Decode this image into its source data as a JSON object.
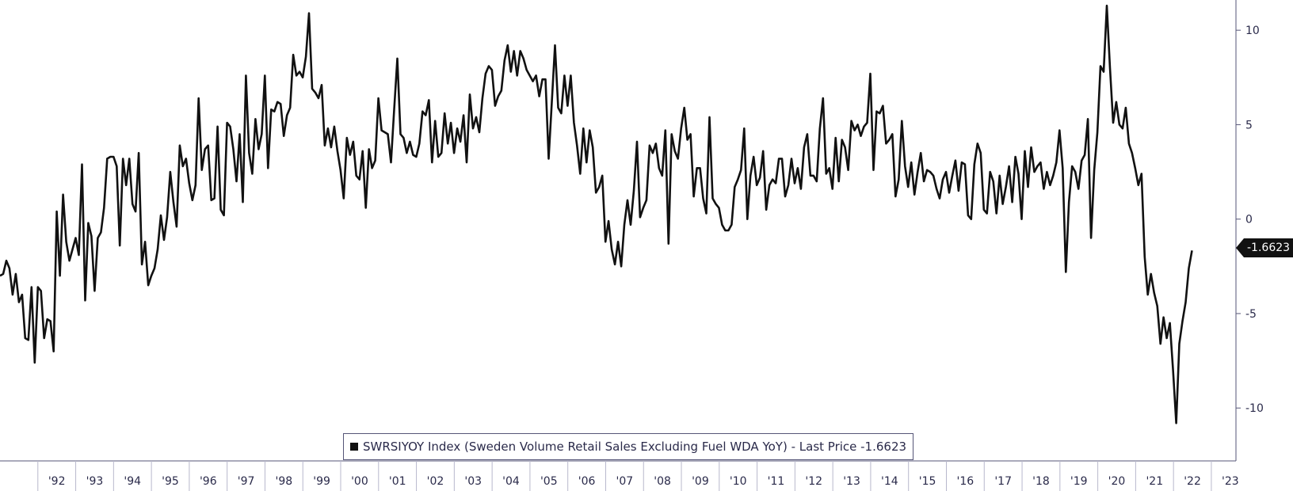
{
  "chart_data": {
    "type": "line",
    "series": [
      {
        "name": "SWRSIYOY Index",
        "color": "#111111",
        "x_start_year": 1991.0,
        "step": 0.0833,
        "values": [
          -3.0,
          -2.9,
          -2.2,
          -2.6,
          -4.0,
          -2.9,
          -4.4,
          -4.0,
          -6.3,
          -6.4,
          -3.6,
          -7.6,
          -3.6,
          -3.8,
          -6.3,
          -5.3,
          -5.4,
          -7.0,
          0.4,
          -3.0,
          1.3,
          -1.2,
          -2.2,
          -1.6,
          -1.0,
          -1.9,
          2.9,
          -4.3,
          -0.2,
          -0.9,
          -3.8,
          -1.0,
          -0.7,
          0.6,
          3.2,
          3.3,
          3.3,
          2.8,
          -1.4,
          3.2,
          1.8,
          3.2,
          0.8,
          0.4,
          3.5,
          -2.4,
          -1.2,
          -3.5,
          -3.0,
          -2.6,
          -1.6,
          0.2,
          -1.1,
          0.1,
          2.5,
          0.9,
          -0.4,
          3.9,
          2.8,
          3.2,
          1.9,
          1.0,
          1.8,
          6.4,
          2.6,
          3.7,
          3.9,
          1.0,
          1.1,
          4.9,
          0.5,
          0.2,
          5.1,
          4.9,
          3.7,
          2.0,
          4.5,
          0.9,
          7.6,
          3.5,
          2.4,
          5.3,
          3.7,
          4.5,
          7.6,
          2.7,
          5.8,
          5.7,
          6.2,
          6.1,
          4.4,
          5.5,
          5.9,
          8.7,
          7.6,
          7.8,
          7.5,
          8.6,
          10.9,
          6.9,
          6.7,
          6.4,
          7.1,
          3.9,
          4.8,
          3.8,
          4.9,
          3.6,
          2.6,
          1.1,
          4.3,
          3.4,
          4.1,
          2.3,
          2.1,
          3.6,
          0.6,
          3.7,
          2.7,
          3.1,
          6.4,
          4.7,
          4.6,
          4.5,
          3.0,
          5.8,
          8.5,
          4.5,
          4.3,
          3.5,
          4.1,
          3.4,
          3.3,
          4.0,
          5.7,
          5.5,
          6.3,
          3.0,
          5.2,
          3.3,
          3.5,
          5.6,
          4.0,
          5.1,
          3.5,
          4.8,
          4.1,
          5.5,
          3.0,
          6.6,
          4.8,
          5.4,
          4.6,
          6.4,
          7.7,
          8.1,
          7.9,
          6.0,
          6.5,
          6.8,
          8.4,
          9.2,
          7.8,
          8.9,
          7.6,
          8.9,
          8.5,
          7.9,
          7.6,
          7.3,
          7.6,
          6.5,
          7.4,
          7.4,
          3.2,
          6.2,
          9.2,
          5.9,
          5.6,
          7.6,
          6.0,
          7.6,
          5.1,
          3.9,
          2.4,
          4.8,
          3.0,
          4.7,
          3.8,
          1.4,
          1.7,
          2.3,
          -1.2,
          -0.1,
          -1.6,
          -2.4,
          -1.2,
          -2.5,
          -0.3,
          1.0,
          -0.3,
          1.5,
          4.1,
          0.1,
          0.6,
          1.0,
          3.9,
          3.5,
          4.0,
          2.7,
          2.3,
          4.7,
          -1.3,
          4.5,
          3.6,
          3.2,
          4.8,
          5.9,
          4.2,
          4.5,
          1.2,
          2.7,
          2.7,
          1.1,
          0.3,
          5.4,
          1.1,
          0.8,
          0.6,
          -0.3,
          -0.6,
          -0.6,
          -0.3,
          1.7,
          2.1,
          2.6,
          4.8,
          0.0,
          2.3,
          3.3,
          1.8,
          2.2,
          3.6,
          0.5,
          1.8,
          2.1,
          1.9,
          3.2,
          3.2,
          1.2,
          1.8,
          3.2,
          1.9,
          2.7,
          1.6,
          3.8,
          4.5,
          2.3,
          2.3,
          2.0,
          4.8,
          6.4,
          2.4,
          2.7,
          1.6,
          4.3,
          2.0,
          4.2,
          3.8,
          2.6,
          5.2,
          4.7,
          5.0,
          4.4,
          4.9,
          5.1,
          7.7,
          2.6,
          5.7,
          5.6,
          6.0,
          4.0,
          4.2,
          4.5,
          1.2,
          2.1,
          5.2,
          2.8,
          1.7,
          3.0,
          1.3,
          2.5,
          3.5,
          2.0,
          2.6,
          2.5,
          2.3,
          1.6,
          1.1,
          2.1,
          2.5,
          1.4,
          2.3,
          3.1,
          1.5,
          3.0,
          2.9,
          0.2,
          0.0,
          2.9,
          4.0,
          3.5,
          0.5,
          0.3,
          2.5,
          2.0,
          0.3,
          2.3,
          0.8,
          1.7,
          2.8,
          0.9,
          3.3,
          2.4,
          0.0,
          3.6,
          1.7,
          3.8,
          2.5,
          2.8,
          3.0,
          1.6,
          2.5,
          1.8,
          2.3,
          3.0,
          4.7,
          2.7,
          -2.8,
          0.9,
          2.8,
          2.5,
          1.6,
          3.1,
          3.4,
          5.3,
          -1.0,
          2.6,
          4.6,
          8.1,
          7.8,
          11.3,
          8.0,
          5.1,
          6.2,
          5.0,
          4.8,
          5.9,
          4.0,
          3.5,
          2.7,
          1.8,
          2.4,
          -2.0,
          -4.0,
          -2.9,
          -3.9,
          -4.6,
          -6.6,
          -5.2,
          -6.3,
          -5.5,
          -8.0,
          -10.8,
          -6.6,
          -5.4,
          -4.4,
          -2.6,
          -1.6623
        ]
      }
    ],
    "x_ticks": [
      "'92",
      "'93",
      "'94",
      "'95",
      "'96",
      "'97",
      "'98",
      "'99",
      "'00",
      "'01",
      "'02",
      "'03",
      "'04",
      "'05",
      "'06",
      "'07",
      "'08",
      "'09",
      "'10",
      "'11",
      "'12",
      "'13",
      "'14",
      "'15",
      "'16",
      "'17",
      "'18",
      "'19",
      "'20",
      "'21",
      "'22",
      "'23"
    ],
    "y_ticks": [
      10,
      5,
      0,
      -5,
      -10
    ],
    "ylim": [
      -12.8,
      11.6
    ],
    "xlim": [
      1991.0,
      2023.65
    ],
    "last_value_label": "-1.6623",
    "legend": "SWRSIYOY Index (Sweden Volume Retail Sales Excluding Fuel WDA YoY) - Last Price -1.6623",
    "grid": false
  }
}
